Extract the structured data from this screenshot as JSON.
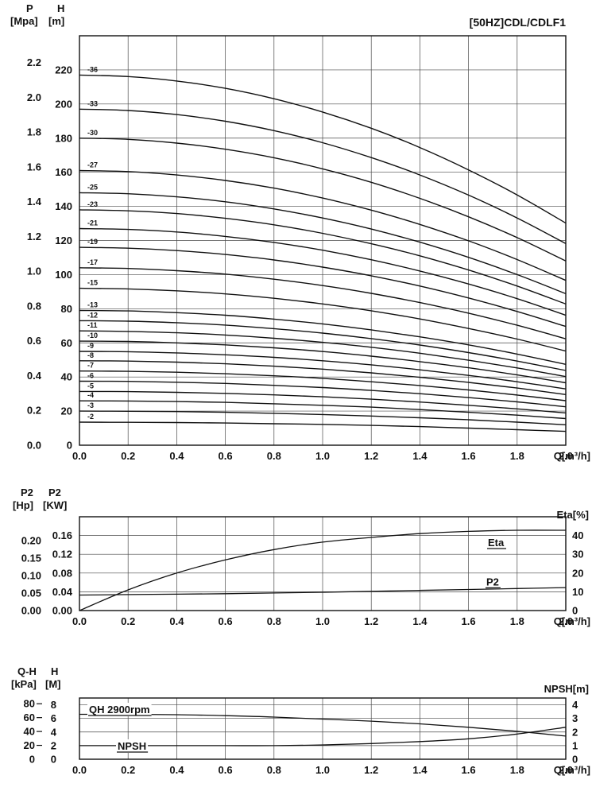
{
  "style": {
    "ink": "#111111",
    "grid": "#4a4a4a",
    "background": "#ffffff"
  },
  "chart_data": [
    {
      "name": "main-qh-curves",
      "type": "line",
      "title": "[50HZ]CDL/CDLF1",
      "xlabel": "Q[m³/h]",
      "x_range": [
        0,
        2.0
      ],
      "x": [
        0,
        0.2,
        0.4,
        0.6,
        0.8,
        1.0,
        1.2,
        1.4,
        1.6,
        1.8,
        2.0
      ],
      "x_tick_labels": [
        "0.0",
        "0.2",
        "0.4",
        "0.6",
        "0.8",
        "1.0",
        "1.2",
        "1.4",
        "1.6",
        "1.8",
        "2.0"
      ],
      "y_range_m": [
        0,
        240
      ],
      "grid": true,
      "left_axis_primary": {
        "label": "P",
        "unit": "[Mpa]",
        "m_per_unit": 101.97,
        "ticks": [
          0,
          0.2,
          0.4,
          0.6,
          0.8,
          1.0,
          1.2,
          1.4,
          1.6,
          1.8,
          2.0,
          2.2
        ],
        "tick_labels": [
          "0.0",
          "0.2",
          "0.4",
          "0.6",
          "0.8",
          "1.0",
          "1.2",
          "1.4",
          "1.6",
          "1.8",
          "2.0",
          "2.2"
        ]
      },
      "left_axis_secondary": {
        "label": "H",
        "unit": "[m]",
        "ticks": [
          0,
          20,
          40,
          60,
          80,
          100,
          120,
          140,
          160,
          180,
          200,
          220
        ],
        "tick_labels": [
          "0",
          "20",
          "40",
          "60",
          "80",
          "100",
          "120",
          "140",
          "160",
          "180",
          "200",
          "220"
        ]
      },
      "series": [
        {
          "label": "-36",
          "values": [
            217,
            216.1,
            213.5,
            209.2,
            203.1,
            195.3,
            185.8,
            174.5,
            161.4,
            146.7,
            130.2
          ]
        },
        {
          "label": "-33",
          "values": [
            197,
            196.2,
            193.8,
            189.9,
            184.4,
            177.3,
            168.6,
            158.4,
            146.6,
            133.2,
            118.2
          ]
        },
        {
          "label": "-30",
          "values": [
            180,
            179.3,
            177.1,
            173.5,
            168.5,
            162.0,
            154.1,
            144.7,
            133.9,
            121.7,
            108.0
          ]
        },
        {
          "label": "-27",
          "values": [
            161,
            160.4,
            158.4,
            155.2,
            150.7,
            144.9,
            137.8,
            129.4,
            119.8,
            108.8,
            96.6
          ]
        },
        {
          "label": "-25",
          "values": [
            148,
            147.4,
            145.6,
            142.7,
            138.5,
            133.2,
            126.7,
            119.0,
            110.1,
            100.0,
            88.8
          ]
        },
        {
          "label": "-23",
          "values": [
            138,
            137.4,
            135.8,
            133.0,
            129.2,
            124.2,
            118.1,
            111.0,
            102.7,
            93.3,
            82.8
          ]
        },
        {
          "label": "-21",
          "values": [
            127,
            126.5,
            125.0,
            122.4,
            118.9,
            114.3,
            108.7,
            102.1,
            94.5,
            85.9,
            76.2
          ]
        },
        {
          "label": "-19",
          "values": [
            116,
            115.5,
            114.1,
            111.8,
            108.6,
            104.4,
            99.3,
            93.3,
            86.3,
            78.4,
            69.6
          ]
        },
        {
          "label": "-17",
          "values": [
            104,
            103.6,
            102.3,
            100.3,
            97.3,
            93.6,
            89.0,
            83.6,
            77.4,
            70.3,
            62.4
          ]
        },
        {
          "label": "-15",
          "values": [
            92,
            91.6,
            90.5,
            88.7,
            86.1,
            82.8,
            78.8,
            74.0,
            68.4,
            62.2,
            55.2
          ]
        },
        {
          "label": "-13",
          "values": [
            79,
            78.7,
            77.7,
            76.2,
            73.9,
            71.1,
            67.6,
            63.5,
            58.8,
            53.4,
            47.4
          ]
        },
        {
          "label": "-12",
          "values": [
            73,
            72.7,
            71.8,
            70.4,
            68.3,
            65.7,
            62.5,
            58.7,
            54.3,
            49.3,
            43.8
          ]
        },
        {
          "label": "-11",
          "values": [
            67,
            66.7,
            65.9,
            64.6,
            62.7,
            60.3,
            57.4,
            53.9,
            49.8,
            45.3,
            40.2
          ]
        },
        {
          "label": "-10",
          "values": [
            61,
            60.8,
            60.0,
            58.8,
            57.1,
            54.9,
            52.2,
            49.0,
            45.4,
            41.2,
            36.6
          ]
        },
        {
          "label": "-9",
          "values": [
            55,
            54.8,
            54.1,
            53.0,
            51.5,
            49.5,
            47.1,
            44.2,
            40.9,
            37.2,
            33.0
          ]
        },
        {
          "label": "-8",
          "values": [
            49.5,
            49.3,
            48.7,
            47.7,
            46.3,
            44.6,
            42.4,
            39.8,
            36.8,
            33.5,
            29.7
          ]
        },
        {
          "label": "-7",
          "values": [
            43.5,
            43.3,
            42.8,
            41.9,
            40.7,
            39.2,
            37.2,
            35.0,
            32.4,
            29.4,
            26.1
          ]
        },
        {
          "label": "-6",
          "values": [
            37.5,
            37.4,
            36.9,
            36.2,
            35.1,
            33.8,
            32.1,
            30.2,
            27.9,
            25.4,
            22.5
          ]
        },
        {
          "label": "-5",
          "values": [
            31.5,
            31.4,
            31.0,
            30.4,
            29.5,
            28.4,
            27.0,
            25.3,
            23.4,
            21.3,
            18.9
          ]
        },
        {
          "label": "-4",
          "values": [
            26,
            25.9,
            25.6,
            25.1,
            24.3,
            23.4,
            22.3,
            20.9,
            19.3,
            17.6,
            15.6
          ]
        },
        {
          "label": "-3",
          "values": [
            20,
            19.9,
            19.7,
            19.3,
            18.7,
            18.0,
            17.1,
            16.1,
            14.9,
            13.5,
            12.0
          ]
        },
        {
          "label": "-2",
          "values": [
            13.5,
            13.4,
            13.3,
            13.0,
            12.6,
            12.2,
            11.6,
            10.9,
            10.0,
            9.1,
            8.1
          ]
        }
      ]
    },
    {
      "name": "power-efficiency",
      "type": "line",
      "xlabel": "Q[m³/h]",
      "x_range": [
        0,
        2.0
      ],
      "x": [
        0,
        0.2,
        0.4,
        0.6,
        0.8,
        1.0,
        1.2,
        1.4,
        1.6,
        1.8,
        2.0
      ],
      "x_tick_labels": [
        "0.0",
        "0.2",
        "0.4",
        "0.6",
        "0.8",
        "1.0",
        "1.2",
        "1.4",
        "1.6",
        "1.8",
        "2.0"
      ],
      "kw_range": [
        0,
        0.2
      ],
      "eta_range": [
        0,
        50
      ],
      "grid": true,
      "left_axis_primary": {
        "label": "P2",
        "unit": "[Hp]",
        "kw_per_unit": 0.7457,
        "ticks": [
          0,
          0.05,
          0.1,
          0.15,
          0.2
        ],
        "tick_labels": [
          "0.00",
          "0.05",
          "0.10",
          "0.15",
          "0.20"
        ]
      },
      "left_axis_secondary": {
        "label": "P2",
        "unit": "[KW]",
        "ticks": [
          0,
          0.04,
          0.08,
          0.12,
          0.16
        ],
        "tick_labels": [
          "0.00",
          "0.04",
          "0.08",
          "0.12",
          "0.16"
        ]
      },
      "right_axis": {
        "label": "Eta[%]",
        "ticks": [
          0,
          10,
          20,
          30,
          40
        ],
        "tick_labels": [
          "0",
          "10",
          "20",
          "30",
          "40"
        ]
      },
      "series": [
        {
          "label": "Eta",
          "axis": "eta",
          "values": [
            0,
            11,
            20,
            27,
            32.5,
            36.5,
            39,
            41,
            42.2,
            42.8,
            42.8
          ]
        },
        {
          "label": "P2",
          "axis": "kw",
          "values": [
            0.033,
            0.034,
            0.035,
            0.036,
            0.0375,
            0.039,
            0.041,
            0.043,
            0.045,
            0.047,
            0.049
          ]
        }
      ]
    },
    {
      "name": "single-stage-qh-npsh",
      "type": "line",
      "xlabel": "Q[m³/h]",
      "x_range": [
        0,
        2.0
      ],
      "x": [
        0,
        0.2,
        0.4,
        0.6,
        0.8,
        1.0,
        1.2,
        1.4,
        1.6,
        1.8,
        2.0
      ],
      "x_tick_labels": [
        "0.0",
        "0.2",
        "0.4",
        "0.6",
        "0.8",
        "1.0",
        "1.2",
        "1.4",
        "1.6",
        "1.8",
        "2.0"
      ],
      "h_range": [
        0,
        9
      ],
      "grid": true,
      "left_axis_primary": {
        "label": "Q-H",
        "unit": "[kPa]",
        "m_per_unit": 0.10197,
        "ticks": [
          0,
          20,
          40,
          60,
          80
        ],
        "tick_labels": [
          "0",
          "20",
          "40",
          "60",
          "80"
        ]
      },
      "left_axis_secondary": {
        "label": "H",
        "unit": "[M]",
        "ticks": [
          0,
          2,
          4,
          6,
          8
        ],
        "tick_labels": [
          "0",
          "2",
          "4",
          "6",
          "8"
        ]
      },
      "right_axis": {
        "label": "NPSH[m]",
        "m_per_unit": 2,
        "ticks": [
          0,
          1,
          2,
          3,
          4
        ],
        "tick_labels": [
          "0",
          "1",
          "2",
          "3",
          "4"
        ]
      },
      "series": [
        {
          "label": "QH 2900rpm",
          "axis": "h",
          "values": [
            6.6,
            6.6,
            6.55,
            6.4,
            6.2,
            5.9,
            5.6,
            5.2,
            4.7,
            4.1,
            3.4
          ]
        },
        {
          "label": "NPSH",
          "axis": "npsh",
          "values": [
            1.0,
            1.0,
            1.0,
            1.0,
            1.0,
            1.05,
            1.15,
            1.3,
            1.5,
            1.85,
            2.35
          ]
        }
      ]
    }
  ]
}
